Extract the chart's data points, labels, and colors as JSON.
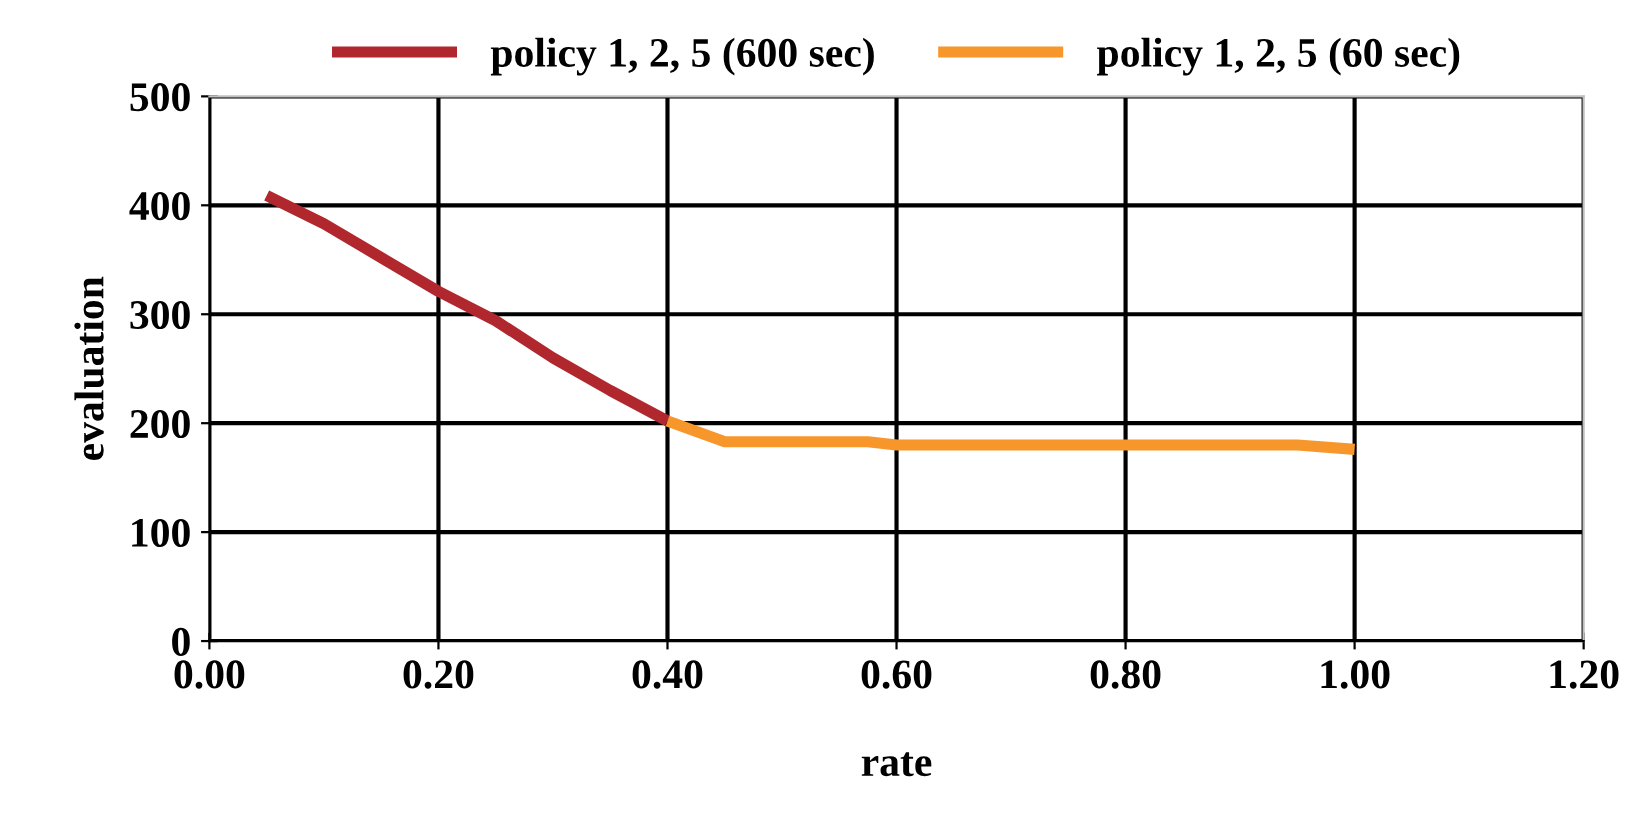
{
  "chart_data": {
    "type": "line",
    "xlabel": "rate",
    "ylabel": "evaluation",
    "series": [
      {
        "name": "policy 1, 2, 5 (600 sec)",
        "color": "#b0282e",
        "x": [
          0.05,
          0.1,
          0.15,
          0.2,
          0.25,
          0.3,
          0.35,
          0.4
        ],
        "values": [
          409,
          383,
          352,
          321,
          294,
          260,
          230,
          202
        ]
      },
      {
        "name": "policy 1, 2, 5 (60 sec)",
        "color": "#f7962b",
        "x": [
          0.4,
          0.45,
          0.5,
          0.55,
          0.575,
          0.6,
          0.65,
          0.7,
          0.75,
          0.8,
          0.85,
          0.9,
          0.95,
          1.0
        ],
        "values": [
          202,
          183,
          183,
          183,
          183,
          180,
          180,
          180,
          180,
          180,
          180,
          180,
          180,
          176
        ]
      }
    ],
    "xlim": [
      0,
      1.2
    ],
    "xticks": [
      {
        "value": 0,
        "label": "0.00"
      },
      {
        "value": 0.2,
        "label": "0.20"
      },
      {
        "value": 0.4,
        "label": "0.40"
      },
      {
        "value": 0.6,
        "label": "0.60"
      },
      {
        "value": 0.8,
        "label": "0.80"
      },
      {
        "value": 1.0,
        "label": "1.00"
      },
      {
        "value": 1.2,
        "label": "1.20"
      }
    ],
    "ylim": [
      0,
      500
    ],
    "yticks": [
      0,
      100,
      200,
      300,
      400,
      500
    ],
    "grid": true,
    "legend": "top",
    "marker": "none",
    "line_style": "solid"
  }
}
